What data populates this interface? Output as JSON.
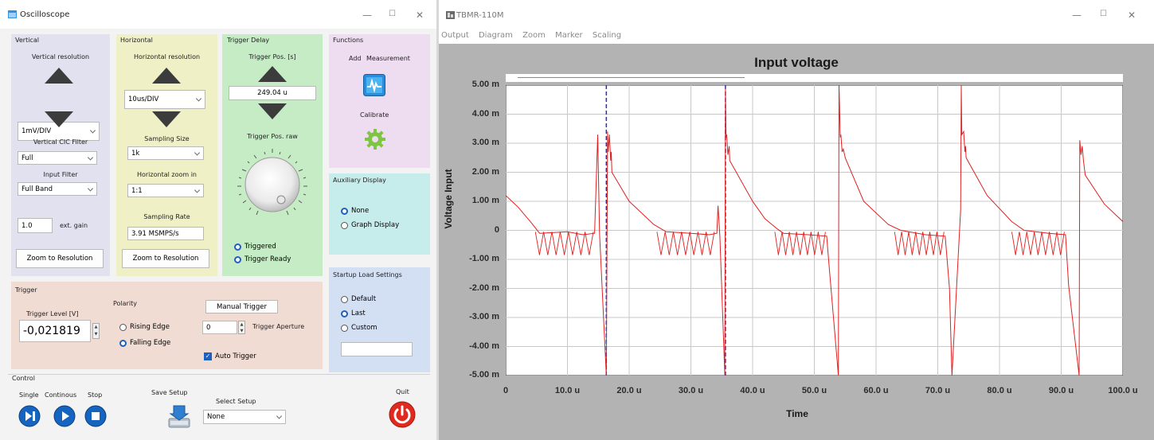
{
  "osc": {
    "title": "Oscilloscope",
    "vertical": {
      "section": "Vertical",
      "resolution_label": "Vertical resolution",
      "resolution_value": "1mV/DIV",
      "cic_label": "Vertical CIC Filter",
      "cic_value": "Full",
      "input_filter_label": "Input Filter",
      "input_filter_value": "Full Band",
      "gain_value": "1.0",
      "gain_label": "ext. gain",
      "zoom_button": "Zoom to Resolution"
    },
    "horizontal": {
      "section": "Horizontal",
      "resolution_label": "Horizontal resolution",
      "resolution_value": "10us/DIV",
      "sampling_size_label": "Sampling Size",
      "sampling_size_value": "1k",
      "zoom_label": "Horizontal zoom in",
      "zoom_value": "1:1",
      "rate_label": "Sampling Rate",
      "rate_value": "3.91 MSMPS/s",
      "zoom_button": "Zoom to Resolution"
    },
    "trigger_delay": {
      "section": "Trigger Delay",
      "pos_label": "Trigger Pos. [s]",
      "pos_value": "249.04 u",
      "raw_label": "Trigger Pos. raw",
      "triggered": "Triggered",
      "ready": "Trigger Ready"
    },
    "functions": {
      "section": "Functions",
      "add": "Add",
      "measurement": "Measurement",
      "calibrate": "Calibrate"
    },
    "aux": {
      "section": "Auxiliary Display",
      "none": "None",
      "graph": "Graph Display"
    },
    "startup": {
      "section": "Startup Load Settings",
      "default": "Default",
      "last": "Last",
      "custom": "Custom",
      "custom_value": ""
    },
    "trigger": {
      "section": "Trigger",
      "level_label": "Trigger Level [V]",
      "level_value": "-0,021819",
      "polarity_label": "Polarity",
      "rising": "Rising Edge",
      "falling": "Falling Edge",
      "manual_button": "Manual Trigger",
      "aperture_value": "0",
      "aperture_label": "Trigger Aperture",
      "auto_trigger": "Auto Trigger"
    },
    "control": {
      "section": "Control",
      "single": "Single",
      "continous": "Continous",
      "stop": "Stop",
      "save": "Save Setup",
      "select_label": "Select Setup",
      "select_value": "None",
      "quit": "Quit"
    }
  },
  "tbmr": {
    "title": "TBMR-110M",
    "menu": [
      "Output",
      "Diagram",
      "Zoom",
      "Marker",
      "Scaling"
    ],
    "colors": {
      "plot_bg": "#b3b3b3",
      "signal": "#e02020",
      "cursor": "#2b2bd6"
    },
    "chart_data": {
      "type": "line",
      "title": "Input voltage",
      "xlabel": "Time",
      "ylabel": "Voltage Input",
      "xlim": [
        0,
        100
      ],
      "ylim": [
        -5,
        5
      ],
      "x_unit": "u",
      "y_unit": "m",
      "x_ticks": [
        "0",
        "10.0 u",
        "20.0 u",
        "30.0 u",
        "40.0 u",
        "50.0 u",
        "60.0 u",
        "70.0 u",
        "80.0 u",
        "90.0 u",
        "100.0 u"
      ],
      "y_ticks": [
        "5.00 m",
        "4.00 m",
        "3.00 m",
        "2.00 m",
        "1.00 m",
        "0",
        "-1.00 m",
        "-2.00 m",
        "-3.00 m",
        "-4.00 m",
        "-5.00 m"
      ],
      "grid": true,
      "cursors_x": [
        16.3,
        35.6
      ],
      "series": [
        {
          "x": [
            0,
            2,
            4,
            5.5,
            10,
            12.5,
            14.4,
            14.9,
            15.2,
            16.3,
            16.5,
            16.6,
            16.8,
            17.0,
            17.1,
            17.2,
            20,
            24,
            26,
            30,
            33,
            34.2,
            34.4,
            34.7,
            35.5,
            35.6,
            35.7,
            35.8,
            36.0,
            36.2,
            36.3,
            40,
            42,
            44,
            45,
            49,
            52.0,
            52.5,
            53.9,
            54.0,
            54.2,
            54.3,
            54.5,
            54.7,
            55,
            58,
            62,
            64,
            68,
            71.2,
            71.9,
            72.3,
            73.7,
            73.8,
            73.9,
            74.2,
            74.4,
            74.5,
            74.6,
            78,
            82,
            84,
            88,
            90.7,
            91.2,
            92.9,
            93.0,
            93.2,
            93.4,
            93.6,
            93.9,
            97,
            100
          ],
          "y": [
            1.2,
            0.8,
            0.3,
            -0.1,
            -0.05,
            -0.15,
            -0.1,
            3.3,
            -0.1,
            -5.0,
            3.4,
            2.7,
            3.3,
            2.4,
            2.7,
            2.0,
            1.0,
            0.2,
            -0.05,
            -0.1,
            -0.15,
            -0.1,
            0.85,
            -0.2,
            -5.0,
            4.9,
            3.2,
            3.3,
            2.6,
            2.9,
            2.4,
            1.0,
            0.4,
            0.05,
            -0.1,
            -0.15,
            -0.2,
            -1.5,
            -5.0,
            5.0,
            3.2,
            3.3,
            2.7,
            2.8,
            2.5,
            1.0,
            0.2,
            0.0,
            -0.15,
            -0.2,
            -2.0,
            -5.0,
            0.7,
            5.0,
            3.3,
            3.4,
            2.7,
            2.9,
            2.5,
            1.2,
            0.3,
            0.0,
            -0.1,
            -0.15,
            -1.9,
            -5.0,
            3.1,
            2.6,
            2.9,
            2.4,
            1.9,
            0.9,
            0.3
          ]
        }
      ]
    }
  }
}
